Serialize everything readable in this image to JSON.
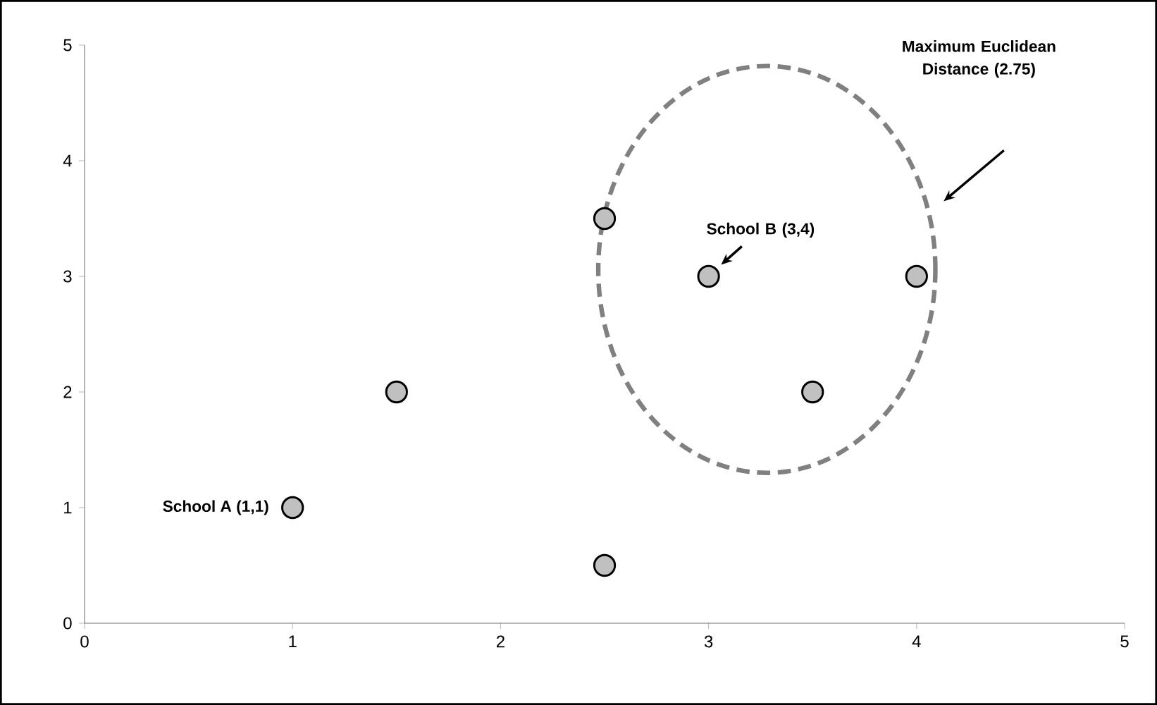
{
  "chart_data": {
    "type": "scatter",
    "xlim": [
      0,
      5
    ],
    "ylim": [
      0,
      5
    ],
    "xticks": [
      0,
      1,
      2,
      3,
      4,
      5
    ],
    "yticks": [
      0,
      1,
      2,
      3,
      4,
      5
    ],
    "grid": false,
    "marker": "circle",
    "series": [
      {
        "color": "#c0c0c0",
        "x": [
          1,
          1.5,
          2.5,
          2.5,
          3,
          3.5,
          4
        ],
        "values": [
          1,
          2,
          0.5,
          3.5,
          3,
          2,
          3
        ]
      }
    ],
    "annotations": [
      {
        "text": "School A (1,1)",
        "x": 1,
        "y": 1
      },
      "School B (3,4)",
      "Maximum Euclidean Distance (2.75)"
    ]
  }
}
